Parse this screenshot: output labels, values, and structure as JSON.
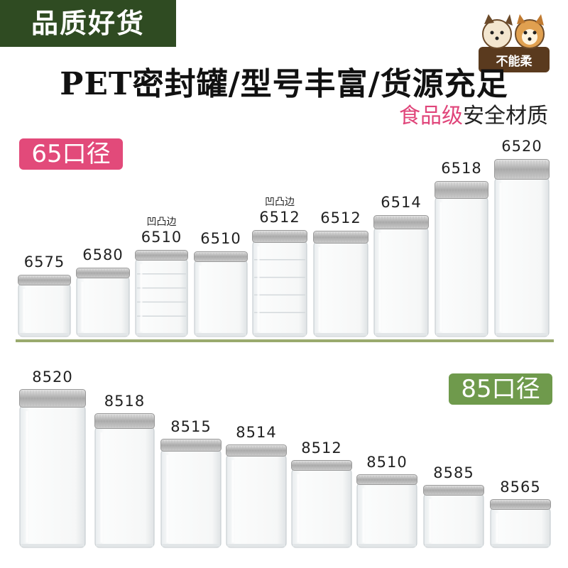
{
  "badge": "品质好货",
  "mascot_text": "不能柔",
  "headline": "PET密封罐/型号丰富/货源充足",
  "subline": {
    "pink": "食品级",
    "dark": "安全材质"
  },
  "tag65": "65口径",
  "tag85": "85口径",
  "colors": {
    "badge_bg": "#2f4b22",
    "pink": "#e24a7a",
    "green": "#6f9a4c",
    "lid": "#c4c4c4"
  },
  "row65": [
    {
      "model": "6575"
    },
    {
      "model": "6580"
    },
    {
      "model": "6510",
      "note": "凹凸边"
    },
    {
      "model": "6510"
    },
    {
      "model": "6512",
      "note": "凹凸边"
    },
    {
      "model": "6512"
    },
    {
      "model": "6514"
    },
    {
      "model": "6518"
    },
    {
      "model": "6520"
    }
  ],
  "row85": [
    {
      "model": "8520"
    },
    {
      "model": "8518"
    },
    {
      "model": "8515"
    },
    {
      "model": "8514"
    },
    {
      "model": "8512"
    },
    {
      "model": "8510"
    },
    {
      "model": "8585"
    },
    {
      "model": "8565"
    }
  ]
}
